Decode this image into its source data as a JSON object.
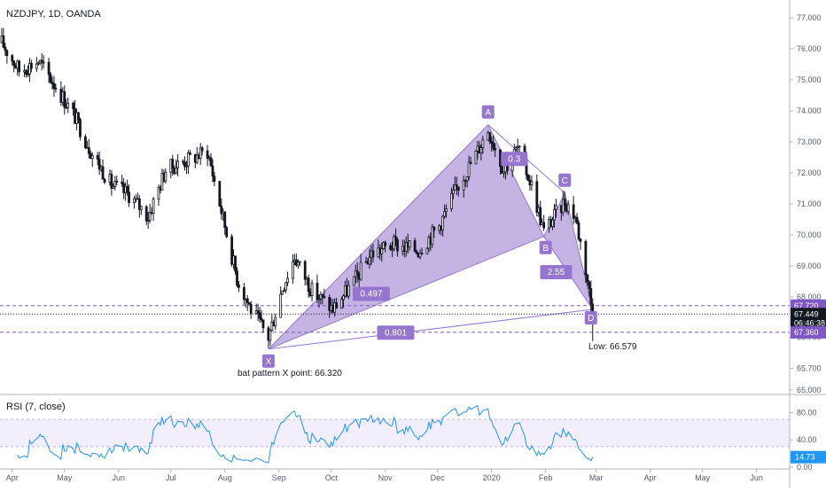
{
  "header": {
    "symbol_title": "NZDJPY, 1D, OANDA",
    "rsi_title": "RSI (7, close)"
  },
  "annotations": {
    "x_note": "bat pattern X point: 66.320",
    "low_note": "Low: 66.579"
  },
  "pattern": {
    "points": [
      {
        "label": "X",
        "date": "2019-08-26",
        "price": 66.32
      },
      {
        "label": "A",
        "date": "2019-12-30",
        "price": 73.55
      },
      {
        "label": "B",
        "date": "2020-01-31",
        "price": 69.95
      },
      {
        "label": "C",
        "date": "2020-02-12",
        "price": 71.35
      },
      {
        "label": "D",
        "date": "2020-02-28",
        "price": 67.6
      }
    ],
    "ratios": [
      {
        "value": "0.497",
        "date": "2019-10-24",
        "price": 68.1
      },
      {
        "value": "0.801",
        "date": "2019-11-07",
        "price": 66.85
      },
      {
        "value": "0.3",
        "date": "2020-01-14",
        "price": 72.45
      },
      {
        "value": "2.55",
        "date": "2020-02-07",
        "price": 68.8
      }
    ],
    "fill_color": "#9575cd",
    "label_color": "#9575cd"
  },
  "price_tags": [
    {
      "text": "67.720",
      "price": 67.72,
      "bg": "#7e57c2"
    },
    {
      "text": "67.449",
      "price": 67.449,
      "bg": "#131722"
    },
    {
      "text": "06:46:38",
      "price": 67.16,
      "bg": "#131722"
    },
    {
      "text": "67.360",
      "price": 66.86,
      "bg": "#7e57c2"
    }
  ],
  "rsi": {
    "current_label": "14.73",
    "current_value": 14.73,
    "line_color": "#2196f3",
    "tag_color": "#2196f3",
    "ticks": [
      "80.00",
      "40.00",
      "0.00"
    ],
    "ylim": [
      0,
      100
    ],
    "levels": [
      30,
      70
    ]
  },
  "chart_data": [
    {
      "type": "candlestick",
      "title": "NZDJPY, 1D, OANDA",
      "x_range": [
        "2019-03-25",
        "2020-06-20"
      ],
      "ylim": [
        65.0,
        77.4
      ],
      "y_ticks": [
        "77.000",
        "76.000",
        "75.000",
        "74.000",
        "73.000",
        "72.000",
        "71.000",
        "70.000",
        "69.000",
        "68.000",
        "66.700",
        "65.700",
        "65.000"
      ],
      "x_ticks": [
        "Apr",
        "May",
        "Jun",
        "Jul",
        "Aug",
        "Sep",
        "Oct",
        "Nov",
        "Dec",
        "2020",
        "Feb",
        "Mar",
        "Apr",
        "May",
        "Jun"
      ],
      "anchors": [
        {
          "date": "2019-03-26",
          "price": 76.2
        },
        {
          "date": "2019-04-05",
          "price": 75.3
        },
        {
          "date": "2019-04-16",
          "price": 75.6
        },
        {
          "date": "2019-04-26",
          "price": 74.8
        },
        {
          "date": "2019-05-07",
          "price": 73.8
        },
        {
          "date": "2019-05-17",
          "price": 72.6
        },
        {
          "date": "2019-05-28",
          "price": 71.6
        },
        {
          "date": "2019-06-07",
          "price": 71.3
        },
        {
          "date": "2019-06-18",
          "price": 70.6
        },
        {
          "date": "2019-06-28",
          "price": 72.1
        },
        {
          "date": "2019-07-10",
          "price": 72.4
        },
        {
          "date": "2019-07-22",
          "price": 72.7
        },
        {
          "date": "2019-08-01",
          "price": 70.3
        },
        {
          "date": "2019-08-08",
          "price": 68.6
        },
        {
          "date": "2019-08-16",
          "price": 67.6
        },
        {
          "date": "2019-08-26",
          "price": 66.7
        },
        {
          "date": "2019-09-03",
          "price": 68.3
        },
        {
          "date": "2019-09-10",
          "price": 69.3
        },
        {
          "date": "2019-09-20",
          "price": 68.2
        },
        {
          "date": "2019-10-02",
          "price": 67.6
        },
        {
          "date": "2019-10-14",
          "price": 68.5
        },
        {
          "date": "2019-10-24",
          "price": 69.4
        },
        {
          "date": "2019-11-06",
          "price": 69.7
        },
        {
          "date": "2019-11-20",
          "price": 69.5
        },
        {
          "date": "2019-12-02",
          "price": 70.3
        },
        {
          "date": "2019-12-12",
          "price": 71.5
        },
        {
          "date": "2019-12-23",
          "price": 72.6
        },
        {
          "date": "2019-12-30",
          "price": 73.4
        },
        {
          "date": "2020-01-08",
          "price": 72.1
        },
        {
          "date": "2020-01-16",
          "price": 72.8
        },
        {
          "date": "2020-01-24",
          "price": 71.6
        },
        {
          "date": "2020-01-31",
          "price": 70.1
        },
        {
          "date": "2020-02-06",
          "price": 70.6
        },
        {
          "date": "2020-02-12",
          "price": 71.1
        },
        {
          "date": "2020-02-18",
          "price": 70.6
        },
        {
          "date": "2020-02-24",
          "price": 68.9
        },
        {
          "date": "2020-02-28",
          "price": 67.45
        }
      ]
    },
    {
      "type": "line",
      "title": "RSI (7, close)",
      "ylim": [
        0,
        100
      ],
      "y_ticks": [
        "80.00",
        "40.00",
        "0.00"
      ],
      "current": 14.73
    }
  ]
}
